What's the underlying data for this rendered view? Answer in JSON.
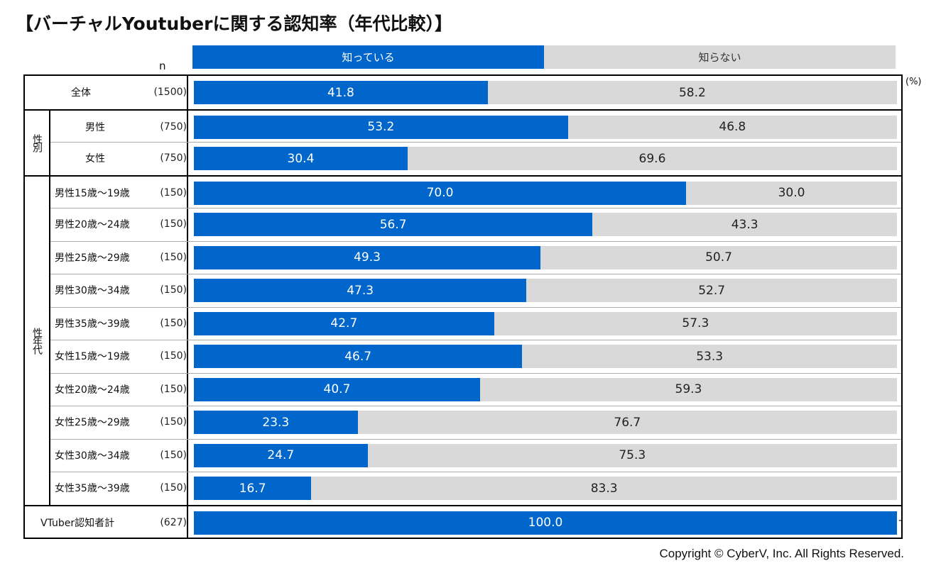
{
  "title": "【バーチャルYoutuberに関する認知率（年代比較）】",
  "n_label": "n",
  "unit_label": "(%)",
  "copyright": "Copyright © CyberV, Inc. All Rights Reserved.",
  "colors": {
    "know": "#0066CC",
    "not_know": "#D9D9D9"
  },
  "chart_data": {
    "type": "bar",
    "stacked": true,
    "orientation": "horizontal",
    "xlim": [
      0,
      100
    ],
    "legend_position": "top",
    "series": [
      {
        "name": "知っている",
        "color": "#0066CC",
        "values": [
          41.8,
          53.2,
          30.4,
          70.0,
          56.7,
          49.3,
          47.3,
          42.7,
          46.7,
          40.7,
          23.3,
          24.7,
          16.7,
          100.0
        ]
      },
      {
        "name": "知らない",
        "color": "#D9D9D9",
        "values": [
          58.2,
          46.8,
          69.6,
          30.0,
          43.3,
          50.7,
          52.7,
          57.3,
          53.3,
          59.3,
          76.7,
          75.3,
          83.3,
          0
        ]
      }
    ],
    "series_labels": [
      [
        "41.8",
        "53.2",
        "30.4",
        "70.0",
        "56.7",
        "49.3",
        "47.3",
        "42.7",
        "46.7",
        "40.7",
        "23.3",
        "24.7",
        "16.7",
        "100.0"
      ],
      [
        "58.2",
        "46.8",
        "69.6",
        "30.0",
        "43.3",
        "50.7",
        "52.7",
        "57.3",
        "53.3",
        "59.3",
        "76.7",
        "75.3",
        "83.3",
        "-"
      ]
    ],
    "categories": [
      "全体",
      "男性",
      "女性",
      "男性15歳～19歳",
      "男性20歳～24歳",
      "男性25歳～29歳",
      "男性30歳～34歳",
      "男性35歳～39歳",
      "女性15歳～19歳",
      "女性20歳～24歳",
      "女性25歳～29歳",
      "女性30歳～34歳",
      "女性35歳～39歳",
      "VTuber認知者計"
    ],
    "n": [
      "(1500)",
      "(750)",
      "(750)",
      "(150)",
      "(150)",
      "(150)",
      "(150)",
      "(150)",
      "(150)",
      "(150)",
      "(150)",
      "(150)",
      "(150)",
      "(627)"
    ],
    "groups": [
      {
        "label": "性別",
        "rows": [
          1,
          2
        ]
      },
      {
        "label": "性年代",
        "rows": [
          3,
          12
        ]
      }
    ]
  }
}
